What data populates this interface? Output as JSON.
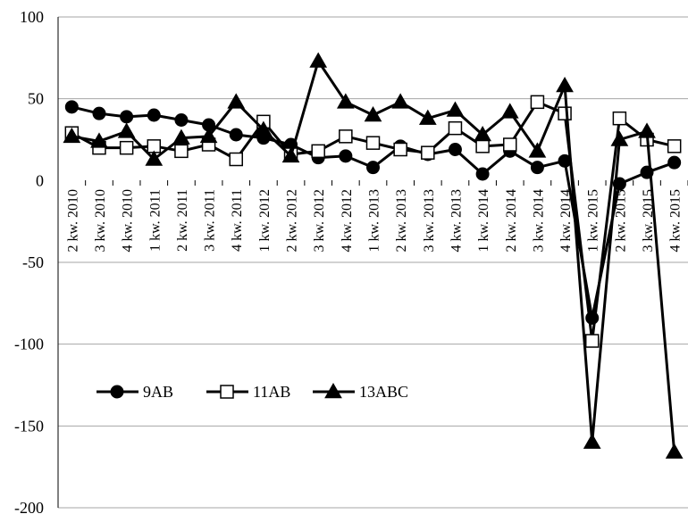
{
  "chart_data": {
    "type": "line",
    "categories": [
      "2 kw. 2010",
      "3 kw. 2010",
      "4 kw. 2010",
      "1 kw. 2011",
      "2 kw. 2011",
      "3 kw. 2011",
      "4 kw. 2011",
      "1 kw. 2012",
      "2 kw. 2012",
      "3 kw. 2012",
      "4 kw. 2012",
      "1 kw. 2013",
      "2 kw. 2013",
      "3 kw. 2013",
      "4 kw. 2013",
      "1 kw. 2014",
      "2 kw. 2014",
      "3 kw. 2014",
      "4 kw. 2014",
      "1 kw. 2015",
      "2 kw. 2015",
      "3 kw. 2015",
      "4 kw. 2015"
    ],
    "series": [
      {
        "name": "9AB",
        "marker": "circle",
        "values": [
          45,
          41,
          39,
          40,
          37,
          34,
          28,
          26,
          22,
          14,
          15,
          8,
          21,
          16,
          19,
          4,
          18,
          8,
          12,
          -84,
          -2,
          5,
          11
        ]
      },
      {
        "name": "11AB",
        "marker": "square",
        "values": [
          29,
          20,
          20,
          21,
          18,
          22,
          13,
          36,
          16,
          18,
          27,
          23,
          19,
          17,
          32,
          21,
          22,
          48,
          41,
          -98,
          38,
          25,
          21
        ]
      },
      {
        "name": "13ABC",
        "marker": "triangle",
        "values": [
          27,
          24,
          30,
          13,
          26,
          27,
          48,
          31,
          15,
          73,
          48,
          40,
          48,
          38,
          43,
          28,
          42,
          18,
          58,
          -160,
          25,
          30,
          -166
        ]
      }
    ],
    "ylim": [
      -200,
      100
    ],
    "yticks": [
      100,
      50,
      0,
      -50,
      -100,
      -150,
      -200
    ],
    "grid": true,
    "legend_position": "lower-left"
  },
  "colors": {
    "line": "#000000",
    "grid": "#a6a6a6",
    "background": "#ffffff"
  }
}
